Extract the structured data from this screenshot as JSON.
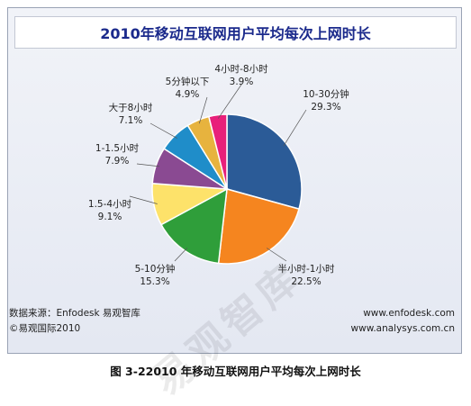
{
  "chart_data": {
    "type": "pie",
    "title": "2010年移动互联网用户平均每次上网时长",
    "slices": [
      {
        "name": "10-30分钟",
        "value": 29.3,
        "label": "29.3%",
        "color": "#2b5b97"
      },
      {
        "name": "半小时-1小时",
        "value": 22.5,
        "label": "22.5%",
        "color": "#f5851f"
      },
      {
        "name": "5-10分钟",
        "value": 15.3,
        "label": "15.3%",
        "color": "#2f9e3a"
      },
      {
        "name": "1.5-4小时",
        "value": 9.1,
        "label": "9.1%",
        "color": "#fde26a"
      },
      {
        "name": "1-1.5小时",
        "value": 7.9,
        "label": "7.9%",
        "color": "#8a4a92"
      },
      {
        "name": "大于8小时",
        "value": 7.1,
        "label": "7.1%",
        "color": "#1f8dc9"
      },
      {
        "name": "5分钟以下",
        "value": 4.9,
        "label": "4.9%",
        "color": "#e7b33e"
      },
      {
        "name": "4小时-8小时",
        "value": 3.9,
        "label": "3.9%",
        "color": "#e8207a"
      }
    ]
  },
  "footer": {
    "source": "数据来源：Enfodesk 易观智库",
    "copyright": "©易观国际2010",
    "site1": "www.enfodesk.com",
    "site2": "www.analysys.com.cn"
  },
  "caption": "图 3-22010 年移动互联网用户平均每次上网时长",
  "watermark": "易观智库"
}
